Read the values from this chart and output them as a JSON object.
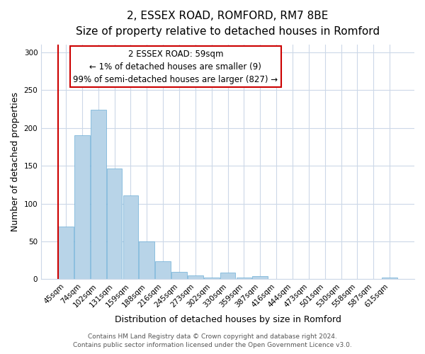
{
  "title": "2, ESSEX ROAD, ROMFORD, RM7 8BE",
  "subtitle": "Size of property relative to detached houses in Romford",
  "xlabel": "Distribution of detached houses by size in Romford",
  "ylabel": "Number of detached properties",
  "bar_labels": [
    "45sqm",
    "74sqm",
    "102sqm",
    "131sqm",
    "159sqm",
    "188sqm",
    "216sqm",
    "245sqm",
    "273sqm",
    "302sqm",
    "330sqm",
    "359sqm",
    "387sqm",
    "416sqm",
    "444sqm",
    "473sqm",
    "501sqm",
    "530sqm",
    "558sqm",
    "587sqm",
    "615sqm"
  ],
  "bar_values": [
    70,
    190,
    224,
    146,
    111,
    50,
    24,
    10,
    5,
    2,
    9,
    2,
    4,
    0,
    0,
    0,
    0,
    0,
    0,
    0,
    2
  ],
  "bar_color": "#b8d4e8",
  "normal_edge_color": "#6baed6",
  "highlight_bar_index": 0,
  "highlight_edge_color": "#cc0000",
  "ylim": [
    0,
    310
  ],
  "yticks": [
    0,
    50,
    100,
    150,
    200,
    250,
    300
  ],
  "annotation_line1": "2 ESSEX ROAD: 59sqm",
  "annotation_line2": "← 1% of detached houses are smaller (9)",
  "annotation_line3": "99% of semi-detached houses are larger (827) →",
  "annotation_box_color": "#ffffff",
  "annotation_box_edge_color": "#cc0000",
  "footer_line1": "Contains HM Land Registry data © Crown copyright and database right 2024.",
  "footer_line2": "Contains public sector information licensed under the Open Government Licence v3.0.",
  "background_color": "#ffffff",
  "grid_color": "#ccd8e8",
  "title_fontsize": 11,
  "subtitle_fontsize": 9.5,
  "axis_label_fontsize": 9,
  "tick_fontsize": 7.5,
  "annotation_fontsize": 8.5,
  "footer_fontsize": 6.5
}
